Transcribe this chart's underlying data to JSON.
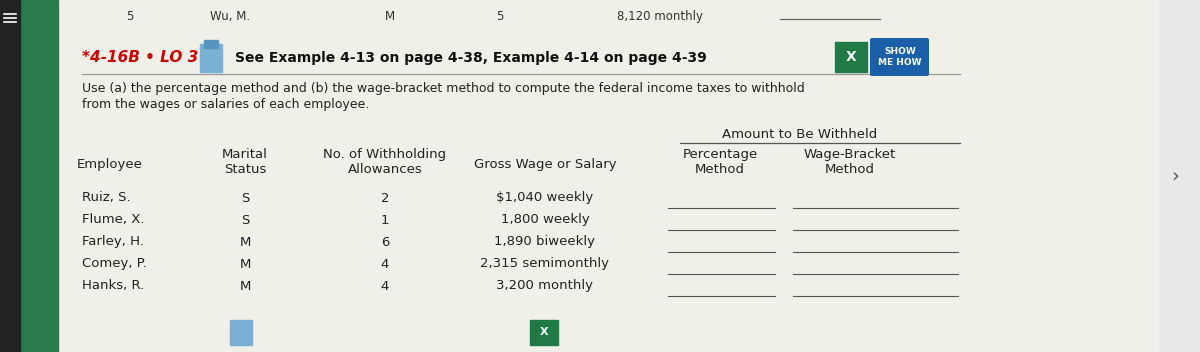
{
  "bg_color": "#f0efe8",
  "left_bar_color": "#2a7a4b",
  "header_label": "*4-16B • LO 3",
  "header_label_color": "#cc0000",
  "header_text": "See Example 4-13 on page 4-38, Example 4-14 on page 4-39",
  "instruction_line1": "Use (a) the percentage method and (b) the wage-bracket method to compute the federal income taxes to withhold",
  "instruction_line2": "from the wages or salaries of each employee.",
  "section_header": "Amount to Be Withheld",
  "employees": [
    "Ruiz, S.",
    "Flume, X.",
    "Farley, H.",
    "Comey, P.",
    "Hanks, R."
  ],
  "marital_status": [
    "S",
    "S",
    "M",
    "M",
    "M"
  ],
  "allowances": [
    "2",
    "1",
    "6",
    "4",
    "4"
  ],
  "gross_wages": [
    "$1,040 weekly",
    "1,800 weekly",
    "1,890 biweekly",
    "2,315 semimonthly",
    "3,200 monthly"
  ],
  "top_prev_row_nums": [
    "5",
    "5"
  ],
  "top_prev_wu": "Wu, M.",
  "top_prev_m": "M",
  "top_prev_salary": "8,120 monthly",
  "fig_width": 12.0,
  "fig_height": 3.52
}
